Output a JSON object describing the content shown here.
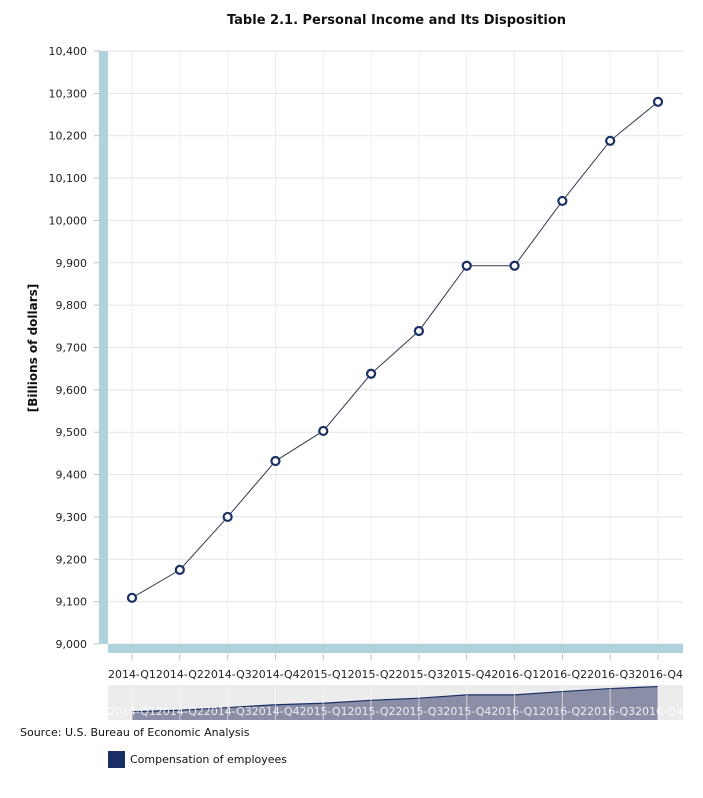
{
  "chart_data": {
    "type": "line",
    "title": "Table 2.1. Personal Income and Its Disposition",
    "xlabel": "",
    "ylabel": "[Billions of dollars]",
    "ylim": [
      9000,
      10400
    ],
    "yticks": [
      9000,
      9100,
      9200,
      9300,
      9400,
      9500,
      9600,
      9700,
      9800,
      9900,
      10000,
      10100,
      10200,
      10300,
      10400
    ],
    "ytick_labels": [
      "9,000",
      "9,100",
      "9,200",
      "9,300",
      "9,400",
      "9,500",
      "9,600",
      "9,700",
      "9,800",
      "9,900",
      "10,000",
      "10,100",
      "10,200",
      "10,300",
      "10,400"
    ],
    "categories": [
      "2014-Q1",
      "2014-Q2",
      "2014-Q3",
      "2014-Q4",
      "2015-Q1",
      "2015-Q2",
      "2015-Q3",
      "2015-Q4",
      "2016-Q1",
      "2016-Q2",
      "2016-Q3",
      "2016-Q4"
    ],
    "series": [
      {
        "name": "Compensation of employees",
        "color": "#1a2f66",
        "values": [
          9109,
          9175,
          9300,
          9432,
          9503,
          9638,
          9739,
          9893,
          9893,
          10046,
          10188,
          10280
        ]
      }
    ],
    "grid": true,
    "legend": "bottom-left",
    "navigator": true
  },
  "footer": {
    "source": "Source: U.S. Bureau of Economic Analysis"
  },
  "legend": {
    "items": [
      {
        "label": "Compensation of employees",
        "color": "#1a2f66"
      }
    ]
  }
}
